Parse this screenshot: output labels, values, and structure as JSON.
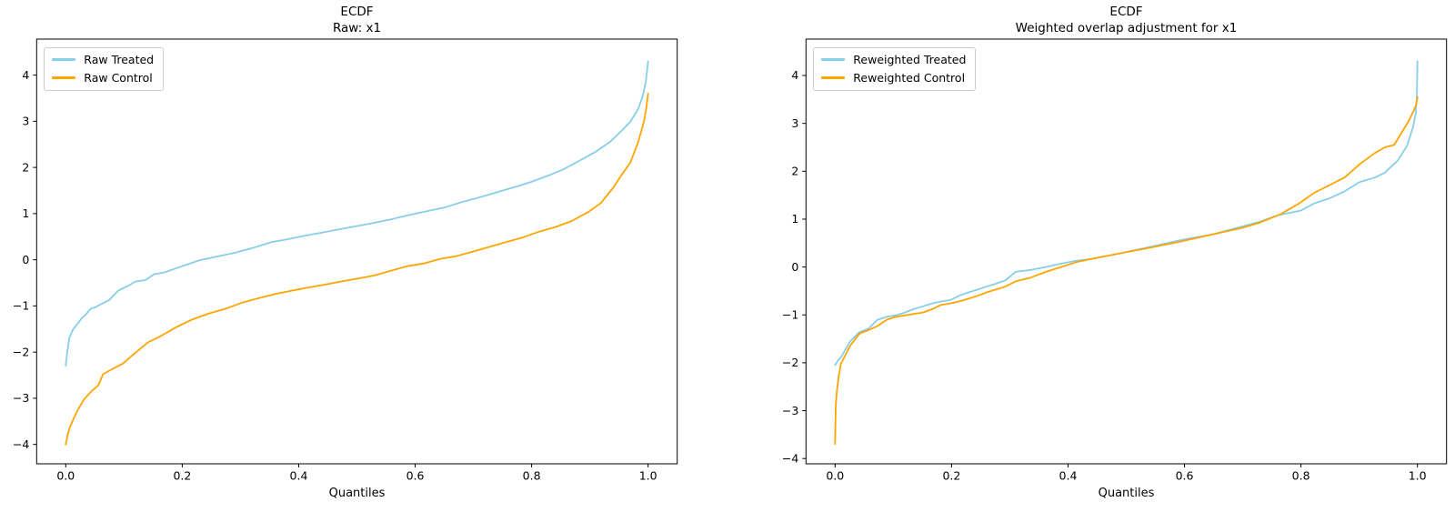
{
  "figure": {
    "background": "#ffffff"
  },
  "colors": {
    "treated": "#87CEEB",
    "control": "#FFA500",
    "spine": "#000000",
    "legend_border": "#cccccc"
  },
  "chart_data": [
    {
      "type": "line",
      "title": "ECDF",
      "subtitle": "Raw: x1",
      "xlabel": "Quantiles",
      "legend_position": "upper left",
      "grid": false,
      "xlim": [
        -0.05,
        1.05
      ],
      "ylim": [
        -4.42,
        4.78
      ],
      "xticks": {
        "values": [
          0,
          0.2,
          0.4,
          0.6,
          0.8,
          1.0
        ],
        "labels": [
          "0.0",
          "0.2",
          "0.4",
          "0.6",
          "0.8",
          "1.0"
        ]
      },
      "yticks": {
        "values": [
          -4,
          -3,
          -2,
          -1,
          0,
          1,
          2,
          3,
          4
        ],
        "labels": [
          "−4",
          "−3",
          "−2",
          "−1",
          "0",
          "1",
          "2",
          "3",
          "4"
        ]
      },
      "series": [
        {
          "name": "Raw Treated",
          "color": "#87CEEB",
          "points": [
            [
              0.0,
              -2.3
            ],
            [
              0.002,
              -2.05
            ],
            [
              0.006,
              -1.7
            ],
            [
              0.012,
              -1.52
            ],
            [
              0.02,
              -1.39
            ],
            [
              0.028,
              -1.26
            ],
            [
              0.035,
              -1.18
            ],
            [
              0.043,
              -1.06
            ],
            [
              0.051,
              -1.03
            ],
            [
              0.059,
              -0.97
            ],
            [
              0.075,
              -0.87
            ],
            [
              0.09,
              -0.67
            ],
            [
              0.106,
              -0.57
            ],
            [
              0.12,
              -0.47
            ],
            [
              0.137,
              -0.44
            ],
            [
              0.152,
              -0.31
            ],
            [
              0.168,
              -0.28
            ],
            [
              0.184,
              -0.21
            ],
            [
              0.2,
              -0.14
            ],
            [
              0.23,
              -0.01
            ],
            [
              0.26,
              0.07
            ],
            [
              0.29,
              0.15
            ],
            [
              0.32,
              0.25
            ],
            [
              0.353,
              0.38
            ],
            [
              0.38,
              0.44
            ],
            [
              0.41,
              0.52
            ],
            [
              0.44,
              0.59
            ],
            [
              0.47,
              0.66
            ],
            [
              0.5,
              0.73
            ],
            [
              0.53,
              0.8
            ],
            [
              0.56,
              0.88
            ],
            [
              0.59,
              0.97
            ],
            [
              0.62,
              1.05
            ],
            [
              0.65,
              1.13
            ],
            [
              0.68,
              1.25
            ],
            [
              0.71,
              1.35
            ],
            [
              0.74,
              1.46
            ],
            [
              0.77,
              1.57
            ],
            [
              0.8,
              1.69
            ],
            [
              0.83,
              1.83
            ],
            [
              0.855,
              1.96
            ],
            [
              0.88,
              2.13
            ],
            [
              0.91,
              2.34
            ],
            [
              0.935,
              2.56
            ],
            [
              0.955,
              2.8
            ],
            [
              0.97,
              3.0
            ],
            [
              0.983,
              3.27
            ],
            [
              0.991,
              3.55
            ],
            [
              0.996,
              3.85
            ],
            [
              1.0,
              4.3
            ]
          ]
        },
        {
          "name": "Raw Control",
          "color": "#FFA500",
          "points": [
            [
              0.0,
              -4.0
            ],
            [
              0.004,
              -3.75
            ],
            [
              0.007,
              -3.63
            ],
            [
              0.015,
              -3.4
            ],
            [
              0.02,
              -3.27
            ],
            [
              0.031,
              -3.03
            ],
            [
              0.043,
              -2.86
            ],
            [
              0.056,
              -2.72
            ],
            [
              0.064,
              -2.48
            ],
            [
              0.075,
              -2.4
            ],
            [
              0.098,
              -2.25
            ],
            [
              0.119,
              -2.02
            ],
            [
              0.141,
              -1.79
            ],
            [
              0.162,
              -1.66
            ],
            [
              0.19,
              -1.46
            ],
            [
              0.218,
              -1.29
            ],
            [
              0.247,
              -1.16
            ],
            [
              0.275,
              -1.06
            ],
            [
              0.303,
              -0.93
            ],
            [
              0.332,
              -0.83
            ],
            [
              0.36,
              -0.74
            ],
            [
              0.388,
              -0.67
            ],
            [
              0.417,
              -0.6
            ],
            [
              0.445,
              -0.54
            ],
            [
              0.473,
              -0.47
            ],
            [
              0.501,
              -0.41
            ],
            [
              0.53,
              -0.34
            ],
            [
              0.558,
              -0.24
            ],
            [
              0.586,
              -0.14
            ],
            [
              0.615,
              -0.08
            ],
            [
              0.643,
              0.02
            ],
            [
              0.671,
              0.08
            ],
            [
              0.7,
              0.18
            ],
            [
              0.728,
              0.28
            ],
            [
              0.756,
              0.38
            ],
            [
              0.784,
              0.48
            ],
            [
              0.813,
              0.61
            ],
            [
              0.841,
              0.71
            ],
            [
              0.869,
              0.84
            ],
            [
              0.898,
              1.04
            ],
            [
              0.919,
              1.23
            ],
            [
              0.94,
              1.56
            ],
            [
              0.954,
              1.83
            ],
            [
              0.969,
              2.09
            ],
            [
              0.983,
              2.55
            ],
            [
              0.993,
              3.0
            ],
            [
              0.997,
              3.3
            ],
            [
              1.0,
              3.6
            ]
          ]
        }
      ]
    },
    {
      "type": "line",
      "title": "ECDF",
      "subtitle": "Weighted overlap adjustment for x1",
      "xlabel": "Quantiles",
      "legend_position": "upper left",
      "grid": false,
      "xlim": [
        -0.05,
        1.05
      ],
      "ylim": [
        -4.11,
        4.76
      ],
      "xticks": {
        "values": [
          0,
          0.2,
          0.4,
          0.6,
          0.8,
          1.0
        ],
        "labels": [
          "0.0",
          "0.2",
          "0.4",
          "0.6",
          "0.8",
          "1.0"
        ]
      },
      "yticks": {
        "values": [
          -4,
          -3,
          -2,
          -1,
          0,
          1,
          2,
          3,
          4
        ],
        "labels": [
          "−4",
          "−3",
          "−2",
          "−1",
          "0",
          "1",
          "2",
          "3",
          "4"
        ]
      },
      "series": [
        {
          "name": "Reweighted Treated",
          "color": "#87CEEB",
          "points": [
            [
              0.0,
              -2.05
            ],
            [
              0.005,
              -1.95
            ],
            [
              0.01,
              -1.89
            ],
            [
              0.026,
              -1.55
            ],
            [
              0.042,
              -1.36
            ],
            [
              0.057,
              -1.29
            ],
            [
              0.073,
              -1.1
            ],
            [
              0.089,
              -1.04
            ],
            [
              0.104,
              -1.01
            ],
            [
              0.12,
              -0.95
            ],
            [
              0.135,
              -0.88
            ],
            [
              0.151,
              -0.82
            ],
            [
              0.167,
              -0.76
            ],
            [
              0.182,
              -0.72
            ],
            [
              0.198,
              -0.69
            ],
            [
              0.213,
              -0.6
            ],
            [
              0.229,
              -0.53
            ],
            [
              0.245,
              -0.47
            ],
            [
              0.26,
              -0.41
            ],
            [
              0.276,
              -0.35
            ],
            [
              0.292,
              -0.28
            ],
            [
              0.31,
              -0.1
            ],
            [
              0.336,
              -0.06
            ],
            [
              0.362,
              0.0
            ],
            [
              0.388,
              0.07
            ],
            [
              0.414,
              0.13
            ],
            [
              0.44,
              0.17
            ],
            [
              0.492,
              0.29
            ],
            [
              0.544,
              0.43
            ],
            [
              0.596,
              0.57
            ],
            [
              0.648,
              0.68
            ],
            [
              0.7,
              0.85
            ],
            [
              0.73,
              0.95
            ],
            [
              0.76,
              1.08
            ],
            [
              0.8,
              1.18
            ],
            [
              0.823,
              1.33
            ],
            [
              0.85,
              1.44
            ],
            [
              0.875,
              1.58
            ],
            [
              0.9,
              1.77
            ],
            [
              0.927,
              1.87
            ],
            [
              0.944,
              1.97
            ],
            [
              0.966,
              2.22
            ],
            [
              0.982,
              2.53
            ],
            [
              0.992,
              2.91
            ],
            [
              0.997,
              3.2
            ],
            [
              0.999,
              3.54
            ],
            [
              1.0,
              4.3
            ]
          ]
        },
        {
          "name": "Reweighted Control",
          "color": "#FFA500",
          "points": [
            [
              0.0,
              -3.7
            ],
            [
              0.001,
              -2.91
            ],
            [
              0.003,
              -2.6
            ],
            [
              0.006,
              -2.3
            ],
            [
              0.01,
              -2.02
            ],
            [
              0.026,
              -1.64
            ],
            [
              0.042,
              -1.39
            ],
            [
              0.057,
              -1.32
            ],
            [
              0.073,
              -1.23
            ],
            [
              0.089,
              -1.1
            ],
            [
              0.104,
              -1.04
            ],
            [
              0.12,
              -1.01
            ],
            [
              0.135,
              -0.98
            ],
            [
              0.151,
              -0.95
            ],
            [
              0.167,
              -0.88
            ],
            [
              0.182,
              -0.79
            ],
            [
              0.198,
              -0.76
            ],
            [
              0.213,
              -0.72
            ],
            [
              0.229,
              -0.66
            ],
            [
              0.245,
              -0.6
            ],
            [
              0.26,
              -0.53
            ],
            [
              0.276,
              -0.47
            ],
            [
              0.292,
              -0.41
            ],
            [
              0.31,
              -0.3
            ],
            [
              0.336,
              -0.22
            ],
            [
              0.362,
              -0.1
            ],
            [
              0.388,
              0.0
            ],
            [
              0.414,
              0.1
            ],
            [
              0.44,
              0.17
            ],
            [
              0.492,
              0.29
            ],
            [
              0.544,
              0.41
            ],
            [
              0.596,
              0.54
            ],
            [
              0.648,
              0.68
            ],
            [
              0.7,
              0.82
            ],
            [
              0.73,
              0.93
            ],
            [
              0.766,
              1.11
            ],
            [
              0.797,
              1.33
            ],
            [
              0.823,
              1.55
            ],
            [
              0.849,
              1.71
            ],
            [
              0.875,
              1.87
            ],
            [
              0.901,
              2.15
            ],
            [
              0.927,
              2.38
            ],
            [
              0.944,
              2.5
            ],
            [
              0.96,
              2.55
            ],
            [
              0.975,
              2.85
            ],
            [
              0.985,
              3.05
            ],
            [
              0.993,
              3.25
            ],
            [
              0.998,
              3.4
            ],
            [
              1.0,
              3.55
            ]
          ]
        }
      ]
    }
  ]
}
